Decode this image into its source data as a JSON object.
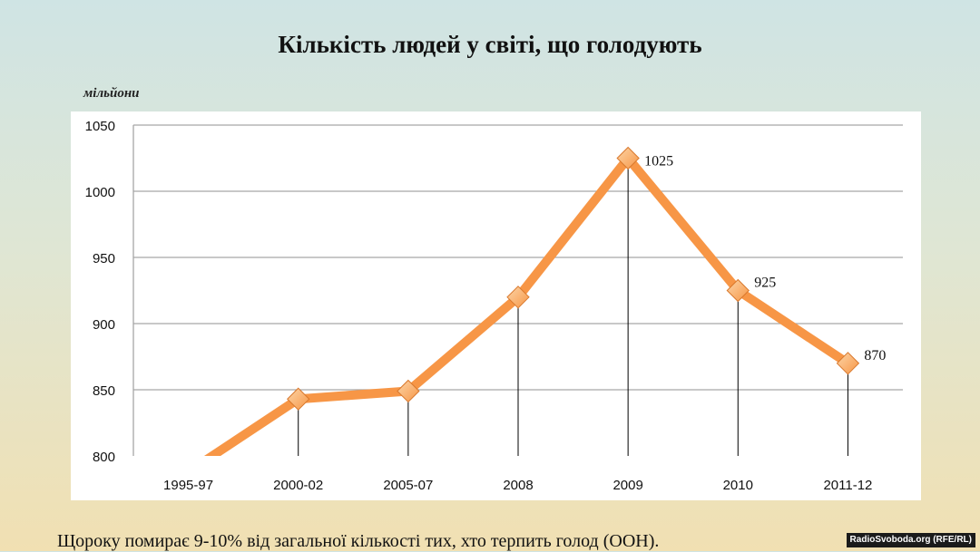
{
  "slide": {
    "title": "Кількість людей у світі, що голодують",
    "unit_label": "мільйони",
    "footnote": "Щороку помирає 9-10% від загальної кількості тих, хто терпить голод (ООН).",
    "credit": "RadioSvoboda.org (RFE/RL)"
  },
  "chart_data": {
    "type": "line",
    "title": "Кількість людей у світі, що голодують",
    "ylabel": "мільйони",
    "categories": [
      "1995-97",
      "2000-02",
      "2005-07",
      "2008",
      "2009",
      "2010",
      "2011-12"
    ],
    "values": [
      788,
      843,
      849,
      920,
      1025,
      925,
      870
    ],
    "data_labels": [
      null,
      null,
      null,
      null,
      "1025",
      "925",
      "870"
    ],
    "ylim": [
      800,
      1050
    ],
    "yticks": [
      800,
      850,
      900,
      950,
      1000,
      1050
    ],
    "grid": true,
    "colors": {
      "line": "#f79646",
      "marker": "#f79646",
      "marker_light": "#fcd5a8",
      "grid": "#a6a6a6",
      "drop": "#000000"
    }
  }
}
